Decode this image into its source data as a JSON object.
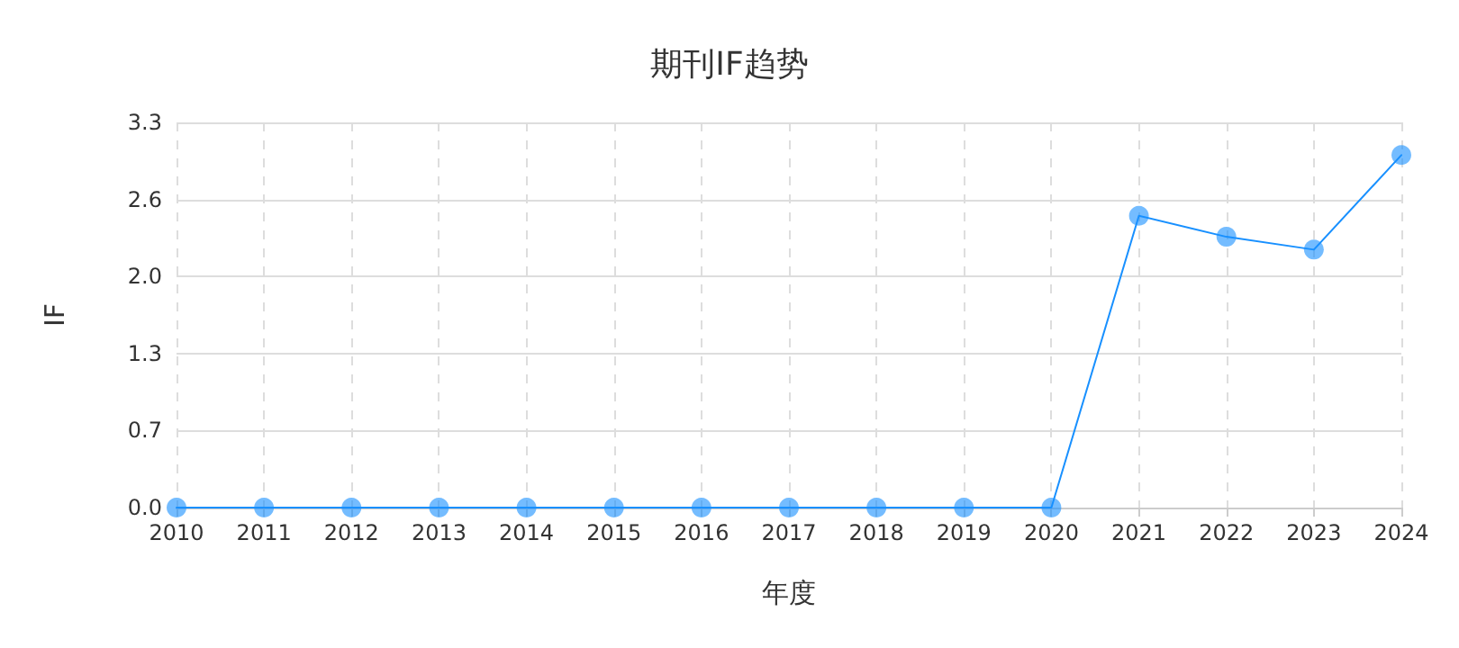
{
  "chart_data": {
    "type": "line",
    "title": "期刊IF趋势",
    "xlabel": "年度",
    "ylabel": "IF",
    "categories": [
      "2010",
      "2011",
      "2012",
      "2013",
      "2014",
      "2015",
      "2016",
      "2017",
      "2018",
      "2019",
      "2020",
      "2021",
      "2022",
      "2023",
      "2024"
    ],
    "series": [
      {
        "color": "#1890ff",
        "values": [
          0,
          0,
          0,
          0,
          0,
          0,
          0,
          0,
          0,
          0,
          0,
          2.5,
          2.32,
          2.21,
          3.02
        ]
      }
    ],
    "ylim": [
      0,
      3.3
    ],
    "yticks": [
      {
        "value": 0,
        "label": "0.0"
      },
      {
        "value": 0.66,
        "label": "0.7"
      },
      {
        "value": 1.32,
        "label": "1.3"
      },
      {
        "value": 1.98,
        "label": "2.0"
      },
      {
        "value": 2.64,
        "label": "2.6"
      },
      {
        "value": 3.3,
        "label": "3.3"
      }
    ],
    "grid": true,
    "marker": "circle",
    "line_style": "solid"
  }
}
